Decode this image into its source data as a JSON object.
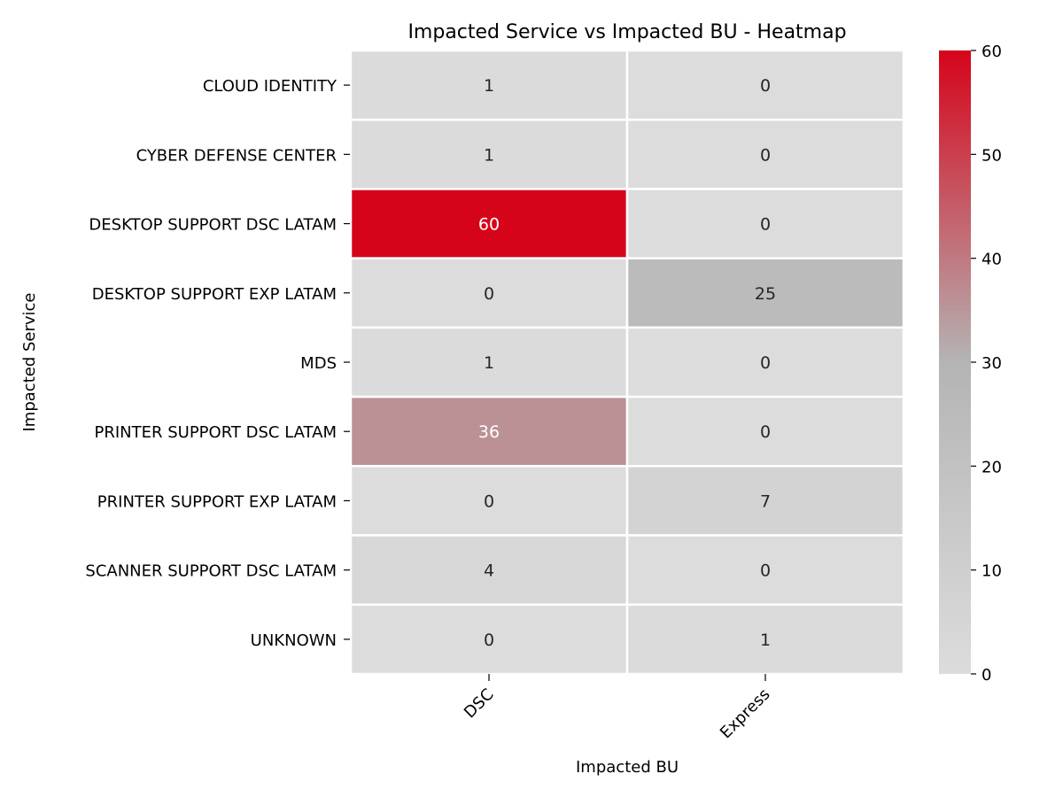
{
  "chart_data": {
    "type": "heatmap",
    "title": "Impacted Service vs Impacted BU - Heatmap",
    "xlabel": "Impacted BU",
    "ylabel": "Impacted Service",
    "x_categories": [
      "DSC",
      "Express"
    ],
    "y_categories": [
      "CLOUD IDENTITY",
      "CYBER DEFENSE CENTER",
      "DESKTOP SUPPORT DSC LATAM",
      "DESKTOP SUPPORT EXP LATAM",
      "MDS",
      "PRINTER SUPPORT DSC LATAM",
      "PRINTER SUPPORT EXP LATAM",
      "SCANNER SUPPORT DSC LATAM",
      "UNKNOWN"
    ],
    "values": [
      [
        1,
        0
      ],
      [
        1,
        0
      ],
      [
        60,
        0
      ],
      [
        0,
        25
      ],
      [
        1,
        0
      ],
      [
        36,
        0
      ],
      [
        0,
        7
      ],
      [
        4,
        0
      ],
      [
        0,
        1
      ]
    ],
    "colorbar": {
      "range": [
        0,
        60
      ],
      "ticks": [
        0,
        10,
        20,
        30,
        40,
        50,
        60
      ],
      "colors": [
        "#dcdcdc",
        "#b4b4b4",
        "#d6041a"
      ]
    }
  }
}
